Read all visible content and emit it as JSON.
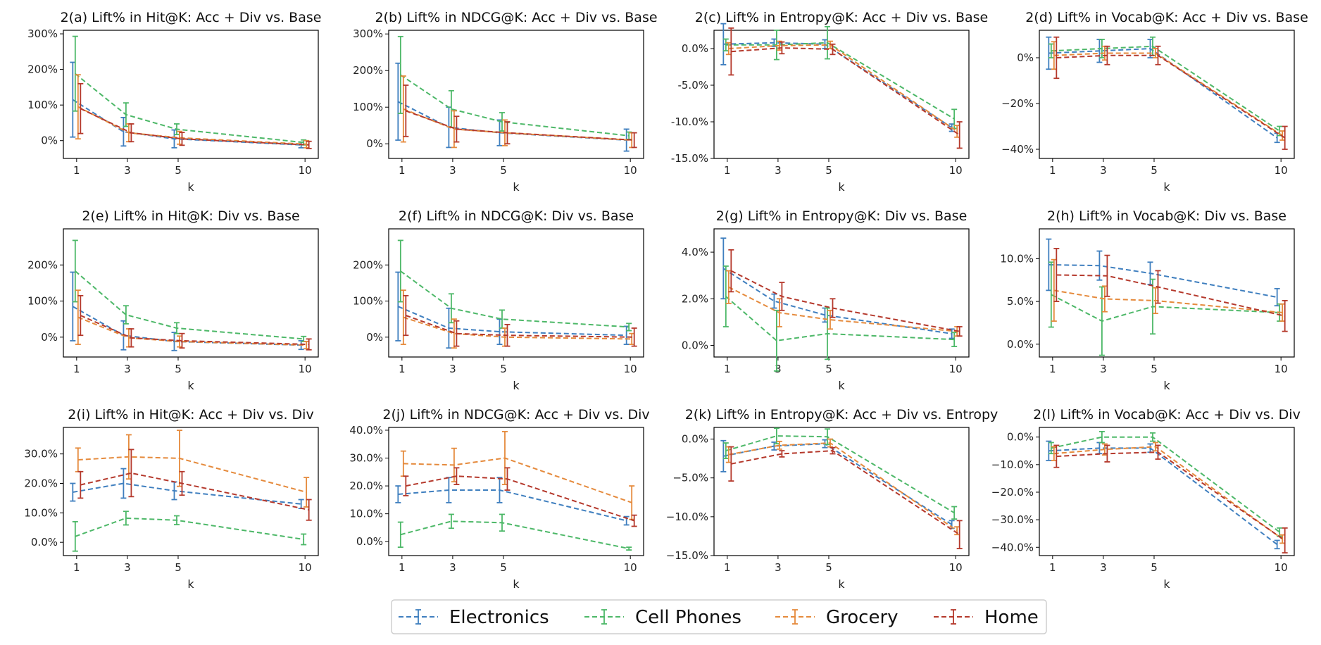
{
  "series_names": [
    "Electronics",
    "Cell Phones",
    "Grocery",
    "Home"
  ],
  "colors": {
    "Electronics": "#3f7fbf",
    "Cell Phones": "#4db868",
    "Grocery": "#e58a3c",
    "Home": "#b5392c"
  },
  "chart_data": [
    {
      "id": "a",
      "type": "line",
      "title": "2(a) Lift% in Hit@K: Acc + Div vs. Base",
      "xlabel": "k",
      "x": [
        1,
        3,
        5,
        10
      ],
      "ylim": [
        -50,
        310
      ],
      "yticks": [
        0,
        100,
        200,
        300
      ],
      "yticklabels": [
        "0%",
        "100%",
        "200%",
        "300%"
      ],
      "series": [
        {
          "name": "Electronics",
          "values": [
            115,
            25,
            5,
            -12
          ],
          "err": [
            105,
            40,
            25,
            8
          ]
        },
        {
          "name": "Cell Phones",
          "values": [
            188,
            73,
            32,
            -5
          ],
          "err": [
            105,
            33,
            15,
            7
          ]
        },
        {
          "name": "Grocery",
          "values": [
            95,
            22,
            8,
            -10
          ],
          "err": [
            90,
            25,
            18,
            10
          ]
        },
        {
          "name": "Home",
          "values": [
            90,
            22,
            5,
            -12
          ],
          "err": [
            70,
            25,
            18,
            10
          ]
        }
      ]
    },
    {
      "id": "b",
      "type": "line",
      "title": "2(b) Lift% in NDCG@K: Acc + Div vs. Base",
      "xlabel": "k",
      "x": [
        1,
        3,
        5,
        10
      ],
      "ylim": [
        -40,
        310
      ],
      "yticks": [
        0,
        100,
        200,
        300
      ],
      "yticklabels": [
        "0%",
        "100%",
        "200%",
        "300%"
      ],
      "series": [
        {
          "name": "Electronics",
          "values": [
            115,
            45,
            30,
            10
          ],
          "err": [
            105,
            55,
            35,
            30
          ]
        },
        {
          "name": "Cell Phones",
          "values": [
            188,
            95,
            60,
            22
          ],
          "err": [
            105,
            50,
            25,
            10
          ]
        },
        {
          "name": "Grocery",
          "values": [
            95,
            40,
            30,
            10
          ],
          "err": [
            90,
            50,
            35,
            20
          ]
        },
        {
          "name": "Home",
          "values": [
            90,
            40,
            30,
            10
          ],
          "err": [
            70,
            35,
            30,
            20
          ]
        }
      ]
    },
    {
      "id": "c",
      "type": "line",
      "title": "2(c) Lift% in Entropy@K: Acc + Div vs. Base",
      "xlabel": "k",
      "x": [
        1,
        3,
        5,
        10
      ],
      "ylim": [
        -15,
        2.5
      ],
      "yticks": [
        0,
        -5,
        -10,
        -15
      ],
      "yticklabels": [
        "0.0%",
        "-5.0%",
        "-10.0%",
        "-15.0%"
      ],
      "series": [
        {
          "name": "Electronics",
          "values": [
            0.6,
            0.8,
            0.6,
            -10.8
          ],
          "err": [
            2.8,
            0.5,
            0.6,
            0.5
          ]
        },
        {
          "name": "Cell Phones",
          "values": [
            0.5,
            0.5,
            0.8,
            -9.6
          ],
          "err": [
            0.8,
            2.0,
            2.2,
            1.3
          ]
        },
        {
          "name": "Grocery",
          "values": [
            0.0,
            0.4,
            0.5,
            -11.3
          ],
          "err": [
            0.8,
            0.6,
            0.5,
            0.8
          ]
        },
        {
          "name": "Home",
          "values": [
            -0.4,
            0.1,
            -0.1,
            -11.8
          ],
          "err": [
            3.2,
            0.8,
            0.7,
            1.8
          ]
        }
      ]
    },
    {
      "id": "d",
      "type": "line",
      "title": "2(d) Lift% in Vocab@K: Acc + Div vs. Base",
      "xlabel": "k",
      "x": [
        1,
        3,
        5,
        10
      ],
      "ylim": [
        -44,
        12
      ],
      "yticks": [
        0,
        -20,
        -40
      ],
      "yticklabels": [
        "0%",
        "−20%",
        "−40%"
      ],
      "series": [
        {
          "name": "Electronics",
          "values": [
            2,
            3,
            4,
            -35
          ],
          "err": [
            7,
            5,
            4,
            2
          ]
        },
        {
          "name": "Cell Phones",
          "values": [
            3,
            4,
            5,
            -32
          ],
          "err": [
            3,
            4,
            4,
            2
          ]
        },
        {
          "name": "Grocery",
          "values": [
            1,
            2,
            2,
            -34
          ],
          "err": [
            6,
            3,
            2,
            2
          ]
        },
        {
          "name": "Home",
          "values": [
            0,
            1,
            1,
            -35
          ],
          "err": [
            9,
            4,
            4,
            5
          ]
        }
      ]
    },
    {
      "id": "e",
      "type": "line",
      "title": "2(e) Lift% in Hit@K: Div vs. Base",
      "xlabel": "k",
      "x": [
        1,
        3,
        5,
        10
      ],
      "ylim": [
        -55,
        300
      ],
      "yticks": [
        0,
        100,
        200
      ],
      "yticklabels": [
        "0%",
        "100%",
        "200%"
      ],
      "series": [
        {
          "name": "Electronics",
          "values": [
            85,
            5,
            -12,
            -22
          ],
          "err": [
            95,
            40,
            25,
            12
          ]
        },
        {
          "name": "Cell Phones",
          "values": [
            183,
            62,
            25,
            -5
          ],
          "err": [
            85,
            25,
            15,
            7
          ]
        },
        {
          "name": "Grocery",
          "values": [
            55,
            -2,
            -12,
            -22
          ],
          "err": [
            75,
            25,
            15,
            10
          ]
        },
        {
          "name": "Home",
          "values": [
            60,
            -2,
            -10,
            -20
          ],
          "err": [
            55,
            25,
            20,
            15
          ]
        }
      ]
    },
    {
      "id": "f",
      "type": "line",
      "title": "2(f) Lift% in NDCG@K: Div vs. Base",
      "xlabel": "k",
      "x": [
        1,
        3,
        5,
        10
      ],
      "ylim": [
        -55,
        300
      ],
      "yticks": [
        0,
        100,
        200
      ],
      "yticklabels": [
        "0%",
        "100%",
        "200%"
      ],
      "series": [
        {
          "name": "Electronics",
          "values": [
            85,
            25,
            15,
            5
          ],
          "err": [
            95,
            55,
            35,
            25
          ]
        },
        {
          "name": "Cell Phones",
          "values": [
            183,
            80,
            50,
            28
          ],
          "err": [
            85,
            40,
            25,
            10
          ]
        },
        {
          "name": "Grocery",
          "values": [
            55,
            10,
            0,
            -5
          ],
          "err": [
            75,
            40,
            25,
            15
          ]
        },
        {
          "name": "Home",
          "values": [
            60,
            10,
            5,
            0
          ],
          "err": [
            55,
            35,
            30,
            25
          ]
        }
      ]
    },
    {
      "id": "g",
      "type": "line",
      "title": "2(g) Lift% in Entropy@K: Div vs. Base",
      "xlabel": "k",
      "x": [
        1,
        3,
        5,
        10
      ],
      "ylim": [
        -0.5,
        5.0
      ],
      "yticks": [
        0,
        2,
        4
      ],
      "yticklabels": [
        "0.0%",
        "2.0%",
        "4.0%"
      ],
      "series": [
        {
          "name": "Electronics",
          "values": [
            3.3,
            1.9,
            1.3,
            0.5
          ],
          "err": [
            1.3,
            0.3,
            0.3,
            0.2
          ]
        },
        {
          "name": "Cell Phones",
          "values": [
            2.1,
            0.2,
            0.5,
            0.25
          ],
          "err": [
            1.3,
            1.3,
            1.1,
            0.3
          ]
        },
        {
          "name": "Grocery",
          "values": [
            2.5,
            1.4,
            1.1,
            0.6
          ],
          "err": [
            0.7,
            0.6,
            0.4,
            0.2
          ]
        },
        {
          "name": "Home",
          "values": [
            3.2,
            2.1,
            1.6,
            0.6
          ],
          "err": [
            0.9,
            0.6,
            0.4,
            0.2
          ]
        }
      ]
    },
    {
      "id": "h",
      "type": "line",
      "title": "2(h) Lift% in Vocab@K: Div vs. Base",
      "xlabel": "k",
      "x": [
        1,
        3,
        5,
        10
      ],
      "ylim": [
        -1.5,
        13.5
      ],
      "yticks": [
        0,
        5,
        10
      ],
      "yticklabels": [
        "0.0%",
        "5.0%",
        "10.0%"
      ],
      "series": [
        {
          "name": "Electronics",
          "values": [
            9.3,
            9.2,
            8.3,
            5.5
          ],
          "err": [
            3.0,
            1.7,
            1.3,
            1.0
          ]
        },
        {
          "name": "Cell Phones",
          "values": [
            5.8,
            2.7,
            4.4,
            3.7
          ],
          "err": [
            3.8,
            4.0,
            3.2,
            1.0
          ]
        },
        {
          "name": "Grocery",
          "values": [
            6.3,
            5.3,
            5.1,
            3.7
          ],
          "err": [
            3.6,
            1.5,
            1.5,
            1.0
          ]
        },
        {
          "name": "Home",
          "values": [
            8.1,
            8.0,
            6.7,
            3.3
          ],
          "err": [
            3.1,
            2.4,
            1.9,
            1.8
          ]
        }
      ]
    },
    {
      "id": "i",
      "type": "line",
      "title": "2(i) Lift% in Hit@K: Acc + Div vs. Div",
      "xlabel": "k",
      "x": [
        1,
        3,
        5,
        10
      ],
      "ylim": [
        -4.5,
        39
      ],
      "yticks": [
        0,
        10,
        20,
        30
      ],
      "yticklabels": [
        "0.0%",
        "10.0%",
        "20.0%",
        "30.0%"
      ],
      "series": [
        {
          "name": "Electronics",
          "values": [
            17,
            20,
            17.5,
            13
          ],
          "err": [
            3,
            5,
            3,
            1.5
          ]
        },
        {
          "name": "Cell Phones",
          "values": [
            2,
            8.2,
            7.5,
            1
          ],
          "err": [
            5,
            2.3,
            1.5,
            1.8
          ]
        },
        {
          "name": "Grocery",
          "values": [
            28,
            29,
            28.5,
            17
          ],
          "err": [
            4,
            7.5,
            9.5,
            5
          ]
        },
        {
          "name": "Home",
          "values": [
            19.5,
            23.5,
            20,
            11
          ],
          "err": [
            4.5,
            8,
            4,
            3.5
          ]
        }
      ]
    },
    {
      "id": "j",
      "type": "line",
      "title": "2(j) Lift% in NDCG@K: Acc + Div vs. Div",
      "xlabel": "k",
      "x": [
        1,
        3,
        5,
        10
      ],
      "ylim": [
        -5,
        41
      ],
      "yticks": [
        0,
        10,
        20,
        30,
        40
      ],
      "yticklabels": [
        "0.0%",
        "10.0%",
        "20.0%",
        "30.0%",
        "40.0%"
      ],
      "series": [
        {
          "name": "Electronics",
          "values": [
            17,
            18.5,
            18.5,
            7.5
          ],
          "err": [
            3,
            4.5,
            4.5,
            1.5
          ]
        },
        {
          "name": "Cell Phones",
          "values": [
            2.5,
            7.3,
            6.8,
            -2.5
          ],
          "err": [
            4.5,
            2.5,
            3,
            0.5
          ]
        },
        {
          "name": "Grocery",
          "values": [
            28,
            27.5,
            30,
            14
          ],
          "err": [
            4.5,
            6,
            9.5,
            6
          ]
        },
        {
          "name": "Home",
          "values": [
            20,
            23.5,
            22.5,
            7.5
          ],
          "err": [
            3.5,
            3,
            4,
            2
          ]
        }
      ]
    },
    {
      "id": "k",
      "type": "line",
      "title": "2(k) Lift% in Entropy@K: Acc + Div vs. Entropy",
      "xlabel": "k",
      "x": [
        1,
        3,
        5,
        10
      ],
      "ylim": [
        -15,
        1.5
      ],
      "yticks": [
        0,
        -5,
        -10,
        -15
      ],
      "yticklabels": [
        "0.0%",
        "−5.0%",
        "−10.0%",
        "−15.0%"
      ],
      "series": [
        {
          "name": "Electronics",
          "values": [
            -2.2,
            -0.9,
            -0.6,
            -11
          ],
          "err": [
            2,
            0.5,
            0.5,
            0.5
          ]
        },
        {
          "name": "Cell Phones",
          "values": [
            -1.5,
            0.4,
            0.3,
            -9.5
          ],
          "err": [
            1,
            1,
            1,
            0.8
          ]
        },
        {
          "name": "Grocery",
          "values": [
            -2,
            -0.8,
            -0.5,
            -11.8
          ],
          "err": [
            1,
            0.5,
            0.5,
            0.5
          ]
        },
        {
          "name": "Home",
          "values": [
            -3.2,
            -1.9,
            -1.5,
            -12.3
          ],
          "err": [
            2.2,
            0.4,
            0.4,
            1.8
          ]
        }
      ]
    },
    {
      "id": "l",
      "type": "line",
      "title": "2(l) Lift% in Vocab@K: Acc + Div vs. Div",
      "xlabel": "k",
      "x": [
        1,
        3,
        5,
        10
      ],
      "ylim": [
        -43,
        3.5
      ],
      "yticks": [
        0,
        -10,
        -20,
        -30,
        -40
      ],
      "yticklabels": [
        "0.0%",
        "−10.0%",
        "−20.0%",
        "−30.0%",
        "−40.0%"
      ],
      "series": [
        {
          "name": "Electronics",
          "values": [
            -5,
            -4,
            -4,
            -39
          ],
          "err": [
            3.5,
            2,
            1.5,
            1.5
          ]
        },
        {
          "name": "Cell Phones",
          "values": [
            -4,
            0,
            0,
            -34.5
          ],
          "err": [
            2,
            2,
            1.5,
            1.5
          ]
        },
        {
          "name": "Grocery",
          "values": [
            -6,
            -4.5,
            -3.5,
            -37
          ],
          "err": [
            2.5,
            2,
            1.5,
            1.5
          ]
        },
        {
          "name": "Home",
          "values": [
            -7,
            -6,
            -5.5,
            -37.5
          ],
          "err": [
            4,
            3,
            2.5,
            4.5
          ]
        }
      ]
    }
  ]
}
